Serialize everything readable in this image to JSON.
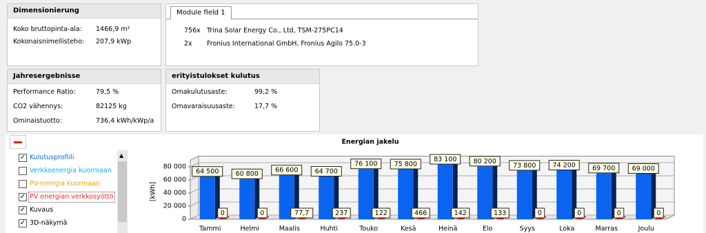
{
  "panels": {
    "dimensionierung": {
      "title": "Dimensionierung",
      "rows": [
        [
          "Koko bruttopinta-ala:",
          "1466,9 m²"
        ],
        [
          "Kokonaisnimellisteho:",
          "207,9 kWp"
        ]
      ]
    },
    "module_field": {
      "tab": "Module field 1",
      "rows": [
        [
          "756x",
          "Trina Solar Energy Co., Ltd, TSM-275PC14"
        ],
        [
          "2x",
          "Fronius International GmbH, Fronius Agilo 75.0-3"
        ]
      ]
    },
    "jahresergebnisse": {
      "title": "Jahresergebnisse",
      "rows": [
        [
          "Performance Ratio:",
          "79,5 %"
        ],
        [
          "CO2 vähennys:",
          "82125 kg"
        ],
        [
          "Ominaistuotto:",
          "736,4 kWh/kWp/a"
        ]
      ]
    },
    "kulutus": {
      "title": "erityistulokset kulutus",
      "rows": [
        [
          "Omakulutusaste:",
          "99,2 %"
        ],
        [
          "Omavaraisuusaste:",
          "17,7 %"
        ]
      ]
    }
  },
  "options": [
    {
      "label": "Kuvaus",
      "checked": true
    },
    {
      "label": "3D-näkymä",
      "checked": true
    }
  ],
  "chart_data": {
    "type": "bar3d",
    "title": "Energian jakelu",
    "y_label": "[kWh]",
    "categories": [
      "Tammi",
      "Helmi",
      "Maalis",
      "Huhti",
      "Touko",
      "Kesä",
      "Heinä",
      "Elo",
      "Syys",
      "Loka",
      "Marras",
      "Joulu"
    ],
    "series": [
      {
        "name": "Kulutusprofiili",
        "color": "#0a64f0",
        "visible": true,
        "values": [
          64500,
          60800,
          66600,
          64700,
          76100,
          75800,
          83100,
          80200,
          73800,
          74200,
          69700,
          69000
        ],
        "value_labels": [
          "64 500",
          "60 800",
          "66 600",
          "64 700",
          "76 100",
          "75 800",
          "83 100",
          "80 200",
          "73 800",
          "74 200",
          "69 700",
          "69 000"
        ]
      },
      {
        "name": "Verkkoenergia kuormaan",
        "color": "#00b4f0",
        "visible": false
      },
      {
        "name": "PV-energia kuormaan",
        "color": "#f5a000",
        "visible": false
      },
      {
        "name": "PV energian verkkosyöttö",
        "color": "#ff2020",
        "visible": true,
        "values": [
          0,
          0,
          77.7,
          237,
          122,
          466,
          142,
          133,
          0,
          0,
          0,
          0
        ],
        "value_labels": [
          "0",
          "0",
          "77,7",
          "237",
          "122",
          "466",
          "142",
          "133",
          "0",
          "0",
          "0",
          "0"
        ]
      }
    ],
    "ylim": [
      0,
      90000
    ],
    "yticks": [
      0,
      {
        "value": 20000,
        "label": "20 000"
      },
      {
        "value": 40000,
        "label": "40 000"
      },
      {
        "value": 60000,
        "label": "60 000"
      },
      {
        "value": 80000,
        "label": "80 000"
      }
    ],
    "grid": true
  }
}
